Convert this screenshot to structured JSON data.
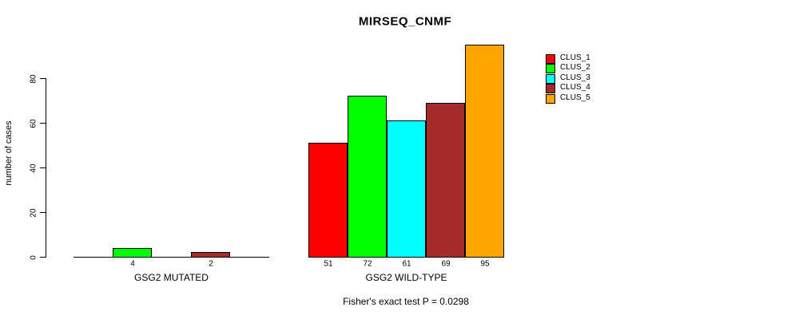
{
  "chart_data": {
    "type": "bar",
    "title": "MIRSEQ_CNMF",
    "ylabel": "number of cases",
    "xlabel": "",
    "ylim": [
      0,
      95
    ],
    "yticks": [
      0,
      20,
      40,
      60,
      80
    ],
    "grid": false,
    "legend_position": "top-right",
    "categories": [
      "CLUS_1",
      "CLUS_2",
      "CLUS_3",
      "CLUS_4",
      "CLUS_5"
    ],
    "legend": [
      {
        "label": "CLUS_1",
        "color": "#FF0000"
      },
      {
        "label": "CLUS_2",
        "color": "#00FF00"
      },
      {
        "label": "CLUS_3",
        "color": "#00FFFF"
      },
      {
        "label": "CLUS_4",
        "color": "#A52A2A"
      },
      {
        "label": "CLUS_5",
        "color": "#FFA500"
      }
    ],
    "groups": [
      {
        "label": "GSG2 MUTATED",
        "values": [
          0,
          4,
          0,
          2,
          0
        ],
        "bar_labels": [
          "",
          "4",
          "",
          "2",
          ""
        ]
      },
      {
        "label": "GSG2 WILD-TYPE",
        "values": [
          51,
          72,
          61,
          69,
          95
        ],
        "bar_labels": [
          "51",
          "72",
          "61",
          "69",
          "95"
        ]
      }
    ],
    "annotation": "Fisher's exact test P = 0.0298"
  }
}
